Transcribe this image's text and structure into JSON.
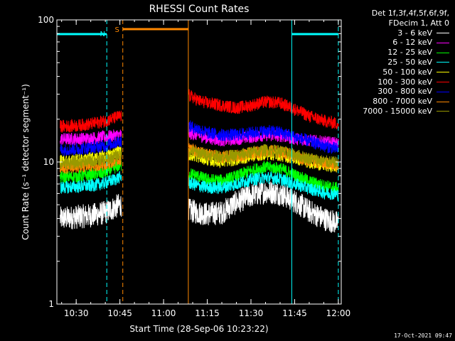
{
  "chart_data": {
    "type": "line",
    "title": "RHESSI Count Rates",
    "xlabel": "Start Time (28-Sep-06 10:23:22)",
    "ylabel": "Count Rate (s⁻¹ detector segment⁻¹)",
    "y_scale": "log",
    "ylim": [
      1,
      100
    ],
    "xlim": [
      "10:23:22",
      "12:01:00"
    ],
    "x_ticks": [
      "10:30",
      "10:45",
      "11:00",
      "11:15",
      "11:30",
      "11:45",
      "12:00"
    ],
    "y_ticks": [
      "1",
      "10",
      "100"
    ],
    "legend_header": [
      "Det 1f,3f,4f,5f,6f,9f,",
      "FDecim 1, Att 0"
    ],
    "legend_position": "right",
    "data_gap": [
      "10:46:00",
      "11:08:30"
    ],
    "x": [
      "10:25",
      "10:30",
      "10:35",
      "10:40",
      "10:45",
      "11:08",
      "11:12",
      "11:15",
      "11:20",
      "11:25",
      "11:30",
      "11:35",
      "11:40",
      "11:45",
      "11:50",
      "11:55",
      "12:00"
    ],
    "series": [
      {
        "name": "3 - 6 keV",
        "color": "#ffffff",
        "values": [
          4.0,
          4.1,
          4.2,
          4.4,
          5.0,
          4.6,
          4.4,
          4.3,
          4.4,
          5.2,
          5.8,
          6.2,
          6.0,
          5.3,
          4.5,
          4.0,
          3.7
        ]
      },
      {
        "name": "6 - 12 keV",
        "color": "#ff00ff",
        "values": [
          14.5,
          14.5,
          14.7,
          15.0,
          15.5,
          16.0,
          15.5,
          14.8,
          14.2,
          14.5,
          15.0,
          15.5,
          15.3,
          14.6,
          14.2,
          13.8,
          13.5
        ]
      },
      {
        "name": "12 - 25 keV",
        "color": "#00ff00",
        "values": [
          7.8,
          7.9,
          8.1,
          8.4,
          9.5,
          8.4,
          7.9,
          7.5,
          7.4,
          7.9,
          8.7,
          9.2,
          9.0,
          8.1,
          7.3,
          6.8,
          6.5
        ]
      },
      {
        "name": "25 - 50 keV",
        "color": "#00ffff",
        "values": [
          6.6,
          6.7,
          6.8,
          7.1,
          7.8,
          7.2,
          6.8,
          6.6,
          6.6,
          7.0,
          7.5,
          7.8,
          7.6,
          7.0,
          6.5,
          6.1,
          5.9
        ]
      },
      {
        "name": "50 - 100 keV",
        "color": "#ffff00",
        "values": [
          10.2,
          10.3,
          10.6,
          10.9,
          12.0,
          11.4,
          10.9,
          10.4,
          10.1,
          10.4,
          11.0,
          11.4,
          11.2,
          10.6,
          10.0,
          9.5,
          9.2
        ]
      },
      {
        "name": "100 - 300 keV",
        "color": "#ff0000",
        "values": [
          17.8,
          18.0,
          18.5,
          19.4,
          21.0,
          30.0,
          27.0,
          26.0,
          25.0,
          24.0,
          25.0,
          26.5,
          26.0,
          23.5,
          21.0,
          19.5,
          18.5
        ]
      },
      {
        "name": "300 - 800 keV",
        "color": "#0000ff",
        "values": [
          12.2,
          12.3,
          12.6,
          13.0,
          14.0,
          18.0,
          17.0,
          16.0,
          15.5,
          15.5,
          16.0,
          16.5,
          16.2,
          15.0,
          14.0,
          13.0,
          12.3
        ]
      },
      {
        "name": "800 - 7000 keV",
        "color": "#ff8800",
        "values": [
          9.1,
          9.2,
          9.4,
          9.7,
          10.5,
          12.5,
          11.8,
          11.2,
          10.8,
          11.0,
          11.5,
          12.0,
          11.8,
          11.0,
          10.3,
          9.8,
          9.4
        ]
      },
      {
        "name": "7000 - 15000 keV",
        "color": "#999900",
        "values": [
          9.8,
          9.9,
          10.1,
          10.4,
          11.2,
          12.0,
          11.6,
          11.2,
          10.9,
          11.1,
          11.6,
          12.1,
          11.9,
          11.2,
          10.6,
          10.1,
          9.8
        ]
      }
    ],
    "night_markers": {
      "label": "N",
      "color": "#00ffff",
      "intervals": [
        [
          "10:23:22",
          "10:40:30"
        ],
        [
          "11:44:00",
          "12:00:00"
        ]
      ],
      "start_lines": [
        "10:40:30",
        "12:00:00"
      ],
      "end_lines": [
        "10:23:22",
        "11:44:00"
      ]
    },
    "saa_markers": {
      "label": "S",
      "color": "#ff8800",
      "intervals": [
        [
          "10:46:00",
          "11:08:30"
        ]
      ],
      "start_lines": [
        "10:46:00"
      ],
      "end_lines": [
        "11:08:30"
      ]
    }
  },
  "footer": {
    "timestamp": "17-Oct-2021 09:47"
  }
}
